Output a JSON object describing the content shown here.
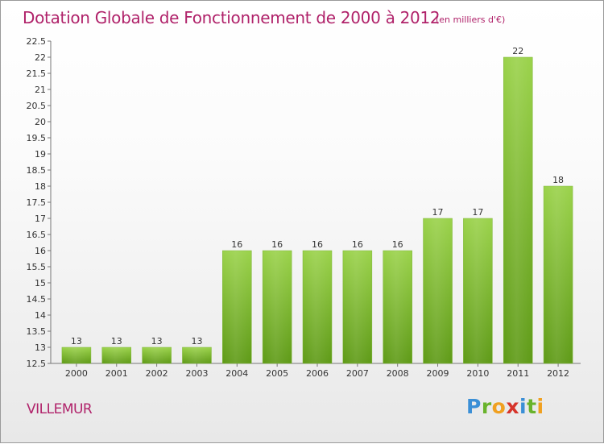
{
  "header": {
    "title": "Dotation Globale de Fonctionnement de 2000 à 2012",
    "unit": "(en milliers d'€)"
  },
  "footer": {
    "location": "VILLEMUR",
    "logo_text": "Proxiti"
  },
  "colors": {
    "title": "#b0226a",
    "bar_top": "#9ad24a",
    "bar_bottom": "#5e9a16"
  },
  "chart_data": {
    "type": "bar",
    "title": "Dotation Globale de Fonctionnement de 2000 à 2012",
    "subtitle": "(en milliers d'€)",
    "xlabel": "",
    "ylabel": "",
    "categories": [
      "2000",
      "2001",
      "2002",
      "2003",
      "2004",
      "2005",
      "2006",
      "2007",
      "2008",
      "2009",
      "2010",
      "2011",
      "2012"
    ],
    "values": [
      13,
      13,
      13,
      13,
      16,
      16,
      16,
      16,
      16,
      17,
      17,
      22,
      18
    ],
    "value_labels": [
      "13",
      "13",
      "13",
      "13",
      "16",
      "16",
      "16",
      "16",
      "16",
      "17",
      "17",
      "22",
      "18"
    ],
    "ylim": [
      12.5,
      22.5
    ],
    "yticks": [
      "12.5",
      "13",
      "13.5",
      "14",
      "14.5",
      "15",
      "15.5",
      "16",
      "16.5",
      "17",
      "17.5",
      "18",
      "18.5",
      "19",
      "19.5",
      "20",
      "20.5",
      "21",
      "21.5",
      "22",
      "22.5"
    ],
    "grid": false,
    "legend": "none"
  }
}
